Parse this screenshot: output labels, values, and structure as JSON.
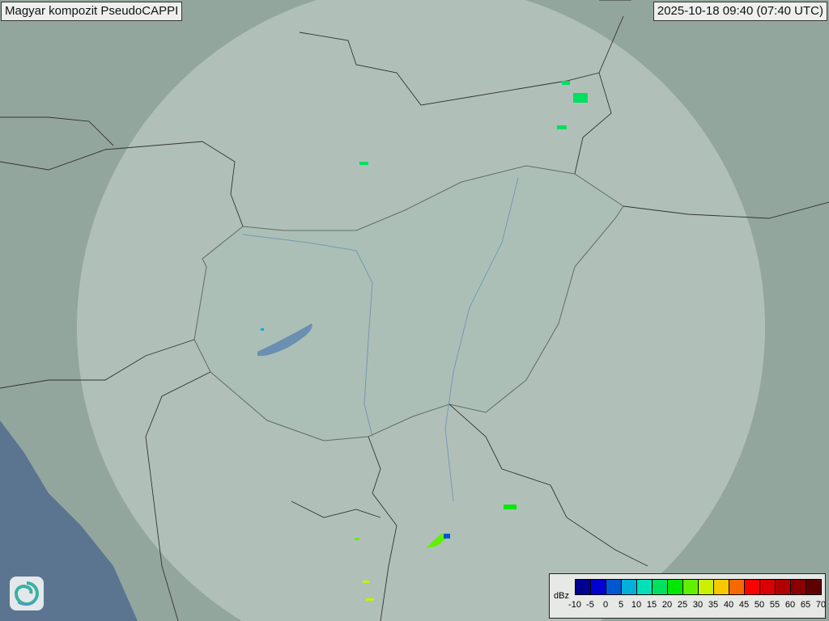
{
  "header": {
    "title": "Magyar kompozit  PseudoCAPPI",
    "timestamp": "2025-10-18 09:40 (07:40 UTC)"
  },
  "legend": {
    "unit": "dBz",
    "ticks": [
      "-10",
      "-5",
      "0",
      "5",
      "10",
      "15",
      "20",
      "25",
      "30",
      "35",
      "40",
      "45",
      "50",
      "55",
      "60",
      "65",
      "70"
    ],
    "colors": [
      "#000090",
      "#0000d0",
      "#0058d0",
      "#00b0d8",
      "#00e0b8",
      "#00e060",
      "#00e800",
      "#60f000",
      "#c8f000",
      "#f8c800",
      "#f86800",
      "#ff0000",
      "#d80000",
      "#b00000",
      "#880000",
      "#600000"
    ]
  },
  "map": {
    "background": "#8fa39a",
    "coverage_color": "#c9d6cf",
    "sea_color": "#5b7590",
    "lake_color": "#6a8fb0"
  },
  "logo": {
    "icon": "swirl-logo-icon"
  }
}
